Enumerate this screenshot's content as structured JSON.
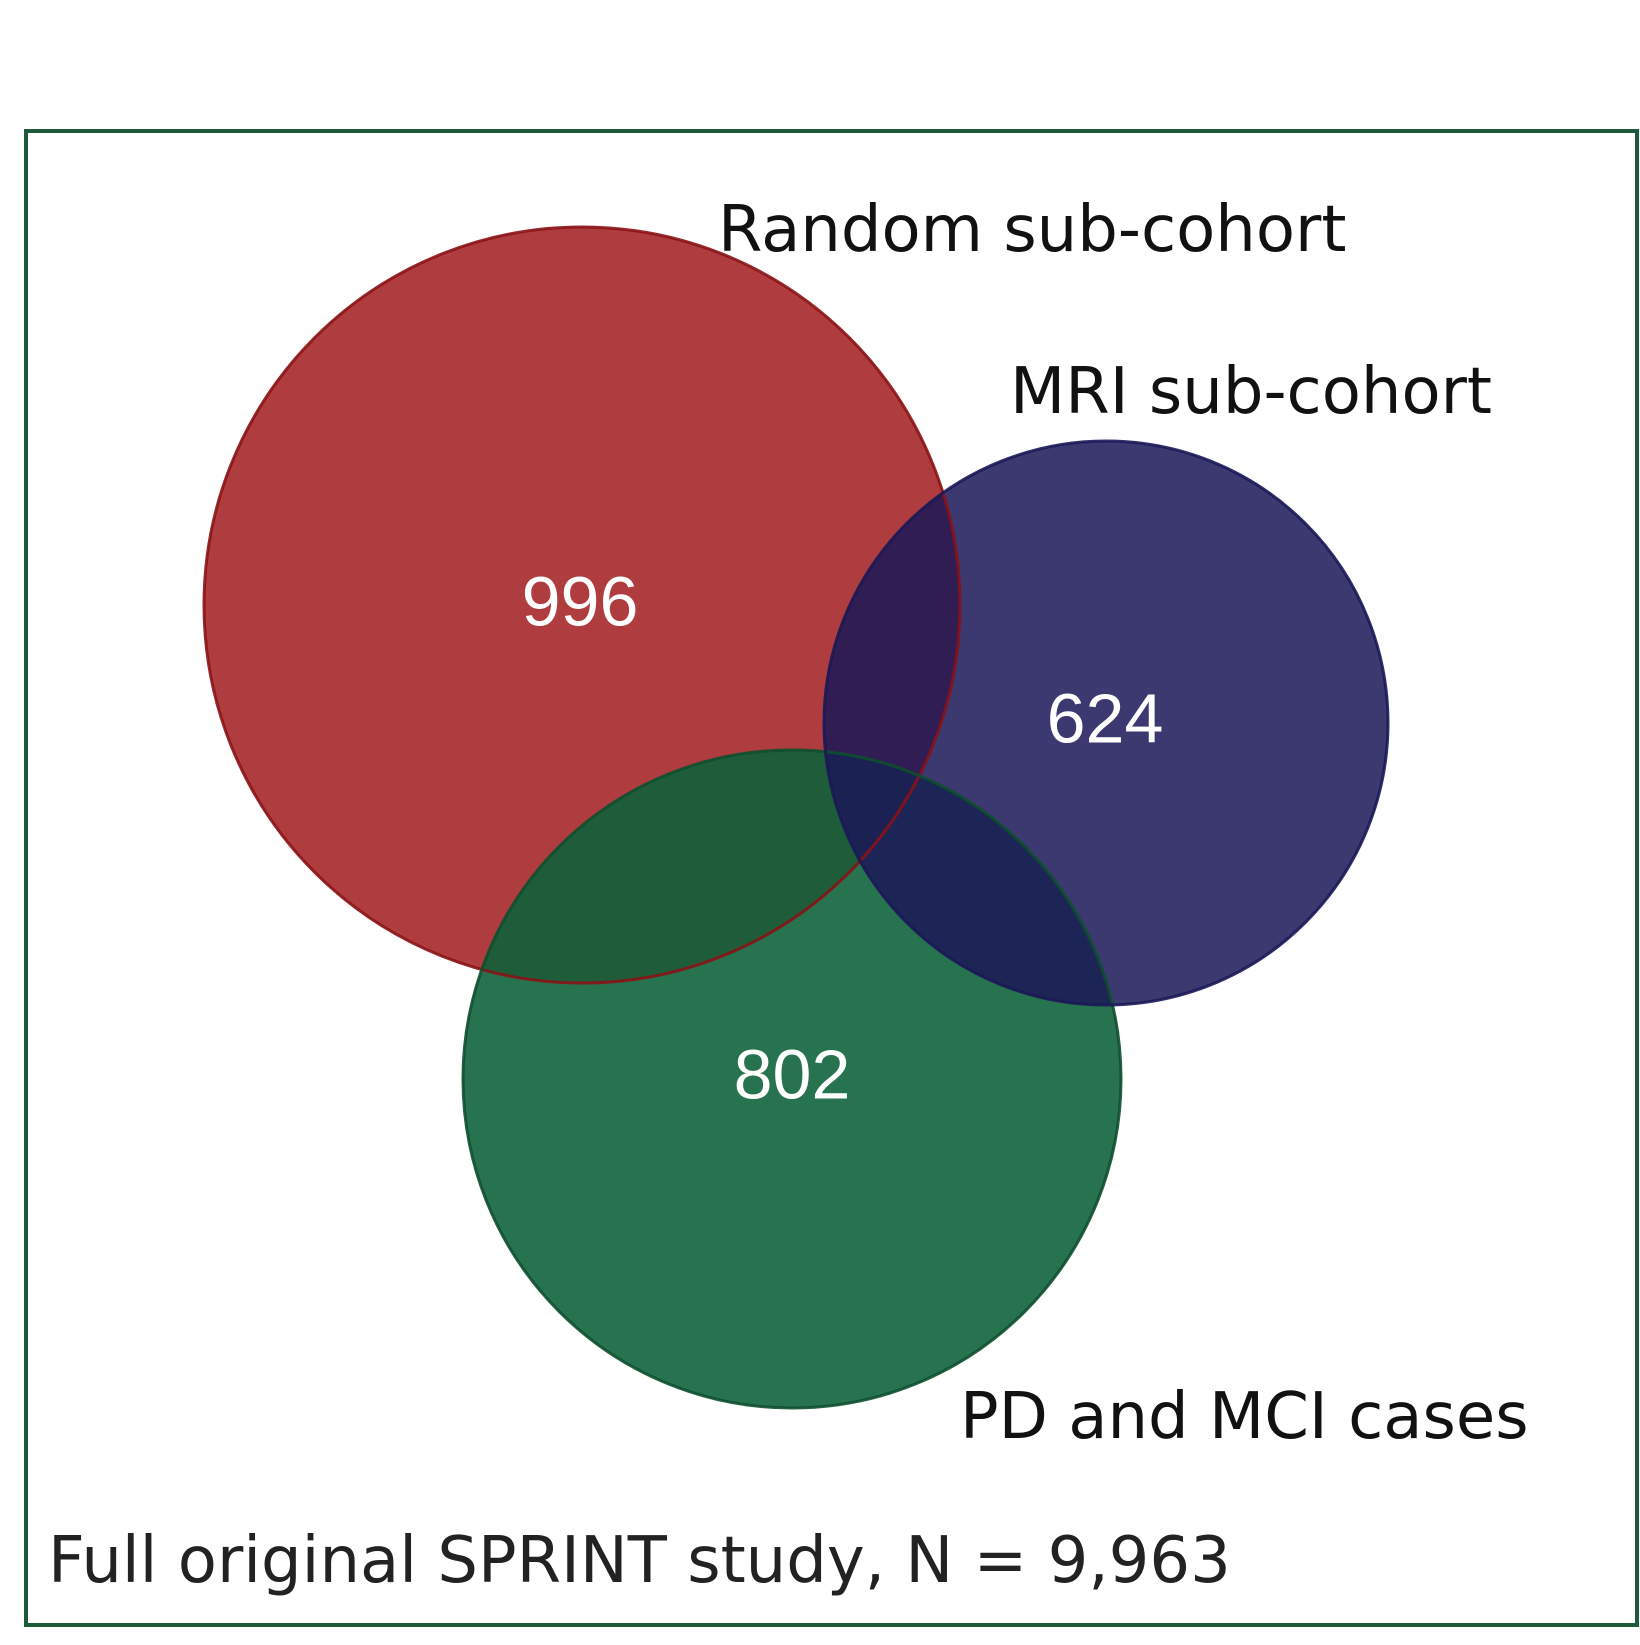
{
  "frame": {
    "caption": "Full original SPRINT study, N = 9,963",
    "border_color": "#1d5a3a"
  },
  "sets": [
    {
      "id": "random",
      "label": "Random sub-cohort",
      "count": "996",
      "fill": "#a31f22",
      "stroke": "#8a1216"
    },
    {
      "id": "mri",
      "label": "MRI sub-cohort",
      "count": "624",
      "fill": "#1b1857",
      "stroke": "#1b1857"
    },
    {
      "id": "pdmci",
      "label": "PD and MCI cases",
      "count": "802",
      "fill": "#0d6239",
      "stroke": "#0d4f2e"
    }
  ]
}
